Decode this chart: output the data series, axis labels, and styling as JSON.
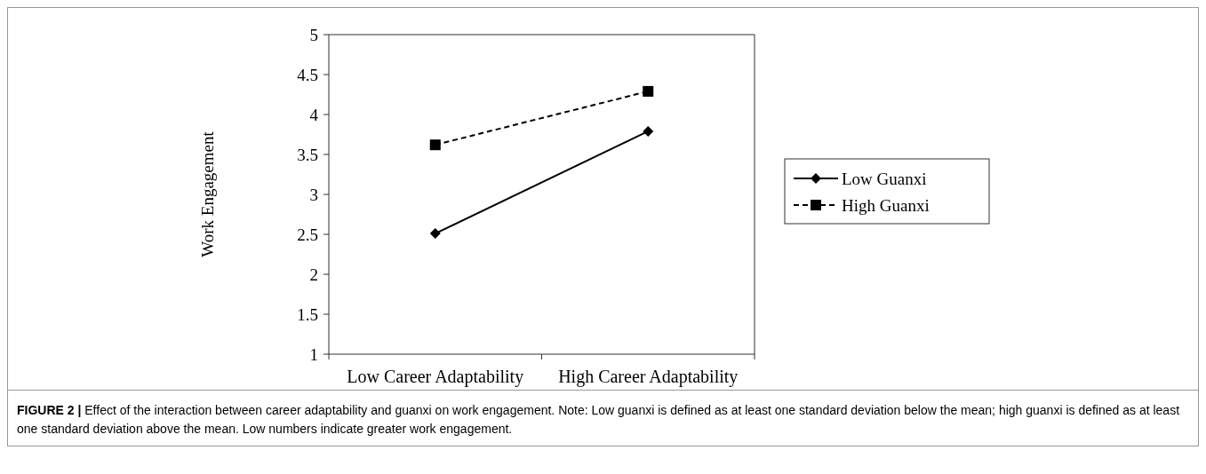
{
  "chart_data": {
    "type": "line",
    "ylabel": "Work Engagement",
    "categories": [
      "Low Career Adaptability",
      "High Career Adaptability"
    ],
    "series": [
      {
        "name": "Low Guanxi",
        "color": "#000000",
        "values": [
          2.51,
          3.79
        ],
        "marker": "diamond",
        "line_style": "solid"
      },
      {
        "name": "High Guanxi",
        "color": "#000000",
        "values": [
          3.62,
          4.29
        ],
        "marker": "square",
        "line_style": "dashed"
      }
    ],
    "ylim": [
      1,
      5
    ],
    "yticks": [
      1,
      1.5,
      2,
      2.5,
      3,
      3.5,
      4,
      4.5,
      5
    ],
    "grid": false,
    "legend": "right",
    "annotations": [
      "FIGURE 2 | Effect of the interaction between career adaptability and guanxi on work engagement. Note: Low guanxi is defined as at least one standard deviation below the mean; high guanxi is defined as at least one standard deviation above the mean. Low numbers indicate greater work engagement."
    ]
  }
}
